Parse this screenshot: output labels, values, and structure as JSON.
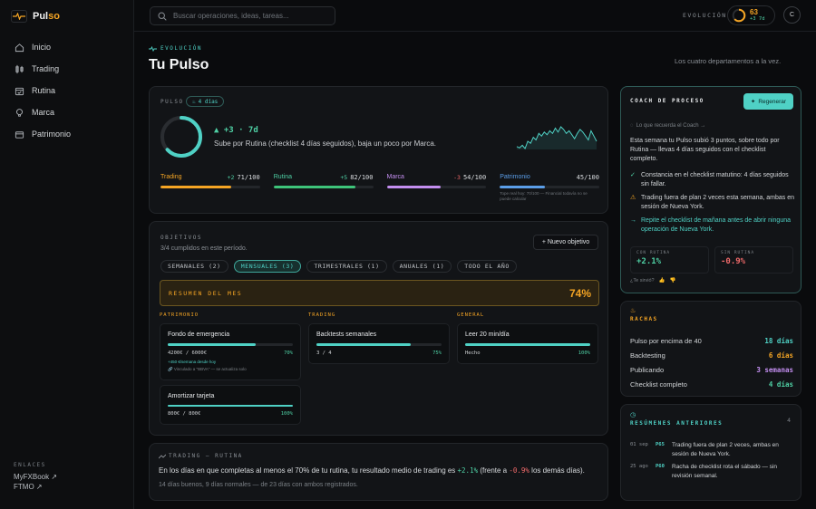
{
  "brand": {
    "name_main": "Pul",
    "name_accent": "so"
  },
  "nav": [
    {
      "label": "Inicio"
    },
    {
      "label": "Trading"
    },
    {
      "label": "Rutina"
    },
    {
      "label": "Marca"
    },
    {
      "label": "Patrimonio"
    }
  ],
  "links": {
    "title": "ENLACES",
    "items": [
      "MyFXBook ↗",
      "FTMO ↗"
    ]
  },
  "search": {
    "placeholder": "Buscar operaciones, ideas, tareas..."
  },
  "topbar": {
    "evo_label": "EVOLUCIÓN",
    "score": "63",
    "delta": "+3 7d",
    "avatar": "C"
  },
  "header": {
    "tag": "EVOLUCIÓN",
    "title": "Tu Pulso",
    "subtitle": "Los cuatro departamentos a la vez."
  },
  "pulso": {
    "label": "PULSO",
    "streak": "4 días",
    "score": 63,
    "delta": "▲ +3 · 7d",
    "description": "Sube por Rutina (checklist 4 días seguidos), baja un poco por Marca.",
    "sparkline": [
      50,
      48,
      52,
      47,
      58,
      55,
      64,
      60,
      70,
      66,
      72,
      68,
      74,
      70,
      78,
      72,
      80,
      76,
      70,
      74,
      68,
      62,
      70,
      76,
      72,
      66,
      60,
      74,
      66,
      58
    ],
    "metrics": [
      {
        "name": "Trading",
        "delta": "+2",
        "value": "71/100",
        "score": 71,
        "color": "#f5a524",
        "name_color": "#f5a524",
        "delta_color": "#4fd1a5"
      },
      {
        "name": "Rutina",
        "delta": "+5",
        "value": "82/100",
        "score": 82,
        "color": "#3ec47a",
        "name_color": "#4fd1a5",
        "delta_color": "#4fd1a5"
      },
      {
        "name": "Marca",
        "delta": "-3",
        "value": "54/100",
        "score": 54,
        "color": "#c38ef0",
        "name_color": "#c38ef0",
        "delta_color": "#f06a6a"
      },
      {
        "name": "Patrimonio",
        "delta": "",
        "value": "45/100",
        "score": 45,
        "color": "#5b9ee8",
        "name_color": "#5b9ee8",
        "delta_color": "#4fd1a5",
        "note": "Tope real hoy: 70/100 — Financial todavía no se puede calcular"
      }
    ]
  },
  "objetivos": {
    "label": "OBJETIVOS",
    "subtitle": "3/4 cumplidos en este período.",
    "new_button": "+ Nuevo objetivo",
    "tabs": [
      "SEMANALES (2)",
      "MENSUALES (3)",
      "TRIMESTRALES (1)",
      "ANUALES (1)",
      "TODO EL AÑO"
    ],
    "summary_label": "RESUMEN DEL MES",
    "summary_pct": "74%",
    "columns": [
      {
        "title": "PATRIMONIO",
        "goals": [
          {
            "name": "Fondo de emergencia",
            "progress": "4200€ / 6000€",
            "pct": "70%",
            "fill": 70,
            "note1": "+450 €/semana desde hoy",
            "note2": "🔗 Vinculado a \"BBVA\" — se actualiza solo"
          },
          {
            "name": "Amortizar tarjeta",
            "progress": "800€ / 800€",
            "pct": "100%",
            "fill": 100
          }
        ]
      },
      {
        "title": "TRADING",
        "goals": [
          {
            "name": "Backtests semanales",
            "progress": "3 / 4",
            "pct": "75%",
            "fill": 75
          }
        ]
      },
      {
        "title": "GENERAL",
        "goals": [
          {
            "name": "Leer 20 min/día",
            "progress": "Hecho",
            "pct": "100%",
            "fill": 100
          }
        ]
      }
    ]
  },
  "trading_rutina": {
    "label": "TRADING — RUTINA",
    "text_a": "En los días en que completas al menos el 70% de tu rutina, tu resultado medio de trading es ",
    "good": "+2.1%",
    "text_b": " (frente a ",
    "bad": "-0.9%",
    "text_c": " los demás días).",
    "footer": "14 días buenos, 9 días normales — de 23 días con ambos registrados."
  },
  "coach": {
    "title": "COACH DE PROCESO",
    "regen": "Regenerar",
    "source": "Lo que recuerda el Coach →",
    "body": "Esta semana tu Pulso subió 3 puntos, sobre todo por Rutina — llevas 4 días seguidos con el checklist completo.",
    "items": [
      {
        "icon": "check",
        "text": "Constancia en el checklist matutino: 4 días seguidos sin fallar."
      },
      {
        "icon": "warn",
        "text": "Trading fuera de plan 2 veces esta semana, ambas en sesión de Nueva York."
      },
      {
        "icon": "arrow",
        "text": "Repite el checklist de mañana antes de abrir ninguna operación de Nueva York."
      }
    ],
    "stats": [
      {
        "label": "CON RUTINA",
        "value": "+2.1%",
        "color": "#4fd1a5"
      },
      {
        "label": "SIN RUTINA",
        "value": "-0.9%",
        "color": "#f06a6a"
      }
    ],
    "feedback": "¿Te sirvió?"
  },
  "rachas": {
    "title": "RACHAS",
    "items": [
      {
        "label": "Pulso por encima de 40",
        "value": "18 días",
        "color": "#4fd1c5"
      },
      {
        "label": "Backtesting",
        "value": "6 días",
        "color": "#f5a524"
      },
      {
        "label": "Publicando",
        "value": "3 semanas",
        "color": "#c38ef0"
      },
      {
        "label": "Checklist completo",
        "value": "4 días",
        "color": "#4fd1a5"
      }
    ]
  },
  "resumenes": {
    "title": "RESÚMENES ANTERIORES",
    "count": "4",
    "items": [
      {
        "date": "01 sep",
        "score": "P65",
        "text": "Trading fuera de plan 2 veces, ambas en sesión de Nueva York."
      },
      {
        "date": "25 ago",
        "score": "P60",
        "text": "Racha de checklist rota el sábado — sin revisión semanal."
      }
    ]
  }
}
